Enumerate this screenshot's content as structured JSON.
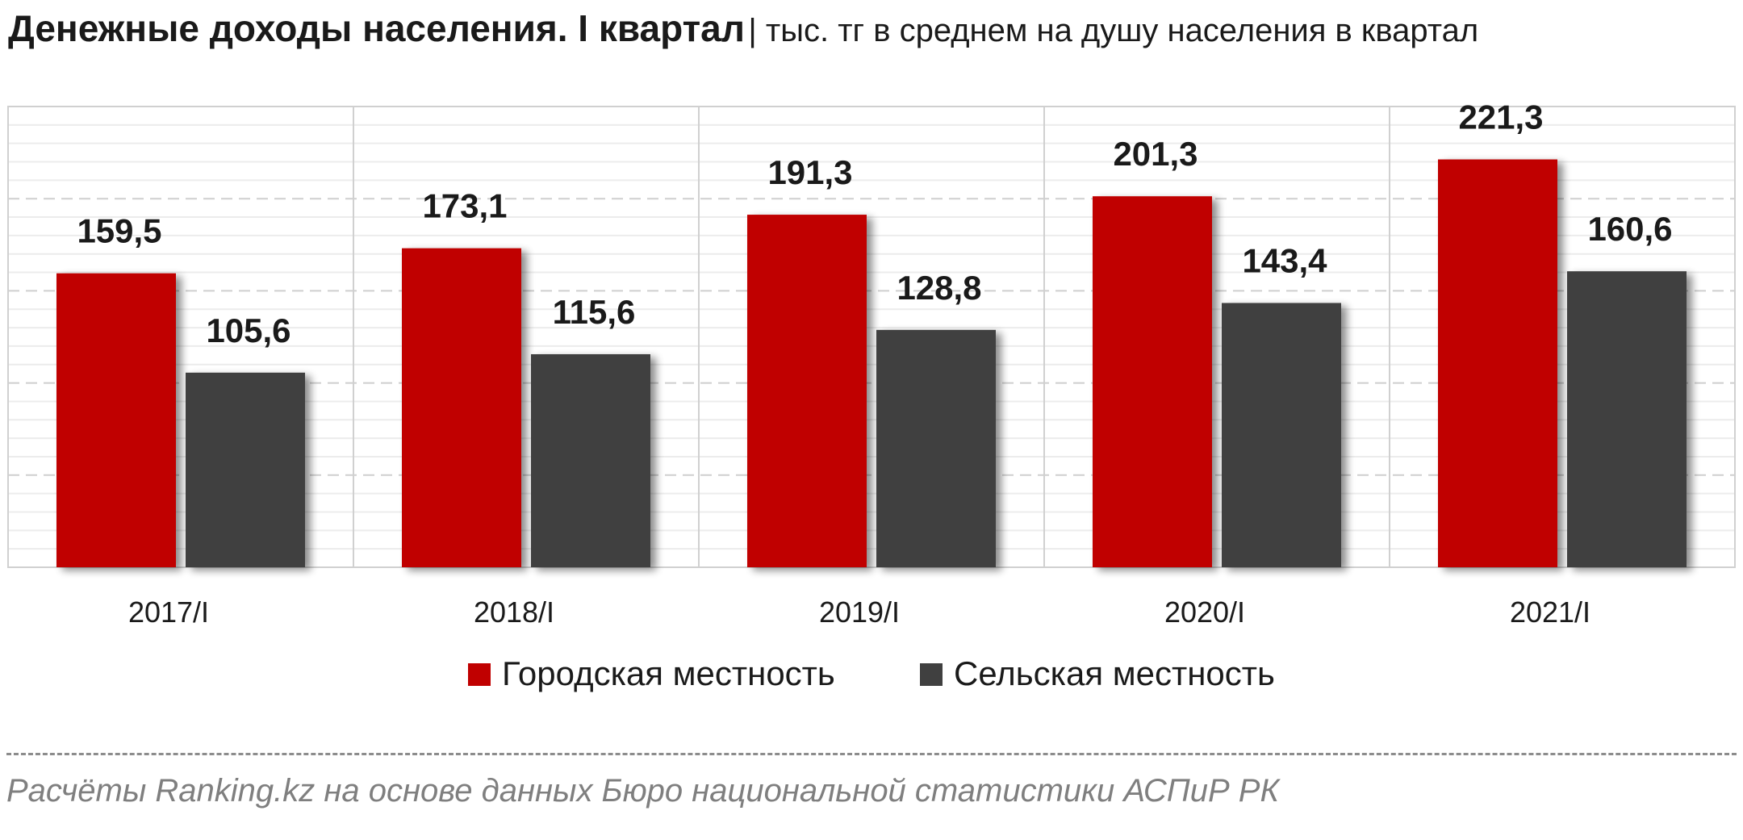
{
  "header": {
    "title": "Денежные доходы населения. I квартал",
    "subtitle": "| тыс. тг в среднем на душу населения в квартал"
  },
  "chart_data": {
    "type": "bar",
    "title": "Денежные доходы населения. I квартал",
    "subtitle": "| тыс. тг в среднем на душу населения в квартал",
    "xlabel": "",
    "ylabel": "",
    "categories": [
      "2017/I",
      "2018/I",
      "2019/I",
      "2020/I",
      "2021/I"
    ],
    "series": [
      {
        "name": "Городская местность",
        "color": "#c00000",
        "values": [
          159.5,
          173.1,
          191.3,
          201.3,
          221.3
        ],
        "labels": [
          "159,5",
          "173,1",
          "191,3",
          "201,3",
          "221,3"
        ]
      },
      {
        "name": "Сельская местность",
        "color": "#404040",
        "values": [
          105.6,
          115.6,
          128.8,
          143.4,
          160.6
        ],
        "labels": [
          "105,6",
          "115,6",
          "128,8",
          "143,4",
          "160,6"
        ]
      }
    ],
    "ylim": [
      0,
      250
    ],
    "grid": true,
    "legend": "bottom"
  },
  "source": {
    "text": "Расчёты Ranking.kz на основе данных  Бюро национальной  статистики АСПиР РК"
  }
}
